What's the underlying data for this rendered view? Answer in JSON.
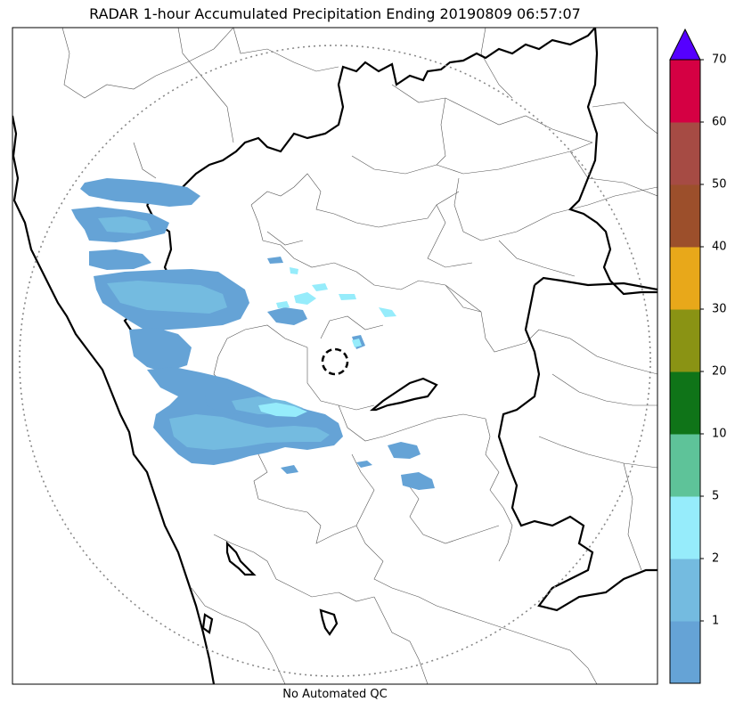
{
  "title": "RADAR 1-hour Accumulated Precipitation Ending 20190809 06:57:07",
  "footnote": "No Automated QC",
  "colorbar": {
    "levels": [
      {
        "label": "",
        "color": "#65a3d6"
      },
      {
        "label": "1",
        "color": "#74bbe0"
      },
      {
        "label": "2",
        "color": "#96ecfb"
      },
      {
        "label": "5",
        "color": "#5ec399"
      },
      {
        "label": "10",
        "color": "#0f7418"
      },
      {
        "label": "20",
        "color": "#8a9314"
      },
      {
        "label": "30",
        "color": "#e8a81a"
      },
      {
        "label": "40",
        "color": "#9c4f2b"
      },
      {
        "label": "50",
        "color": "#a64b44"
      },
      {
        "label": "60",
        "color": "#d50043"
      },
      {
        "label": "70",
        "color": "#d50043"
      }
    ],
    "extend_color": "#5500ff"
  },
  "colors": {
    "precip_light": "#65a3d6",
    "precip_medium": "#74bbe0",
    "precip_heavy": "#96ecfb",
    "range_ring": "#888888",
    "state_border": "#000000",
    "district_border": "#555555"
  }
}
